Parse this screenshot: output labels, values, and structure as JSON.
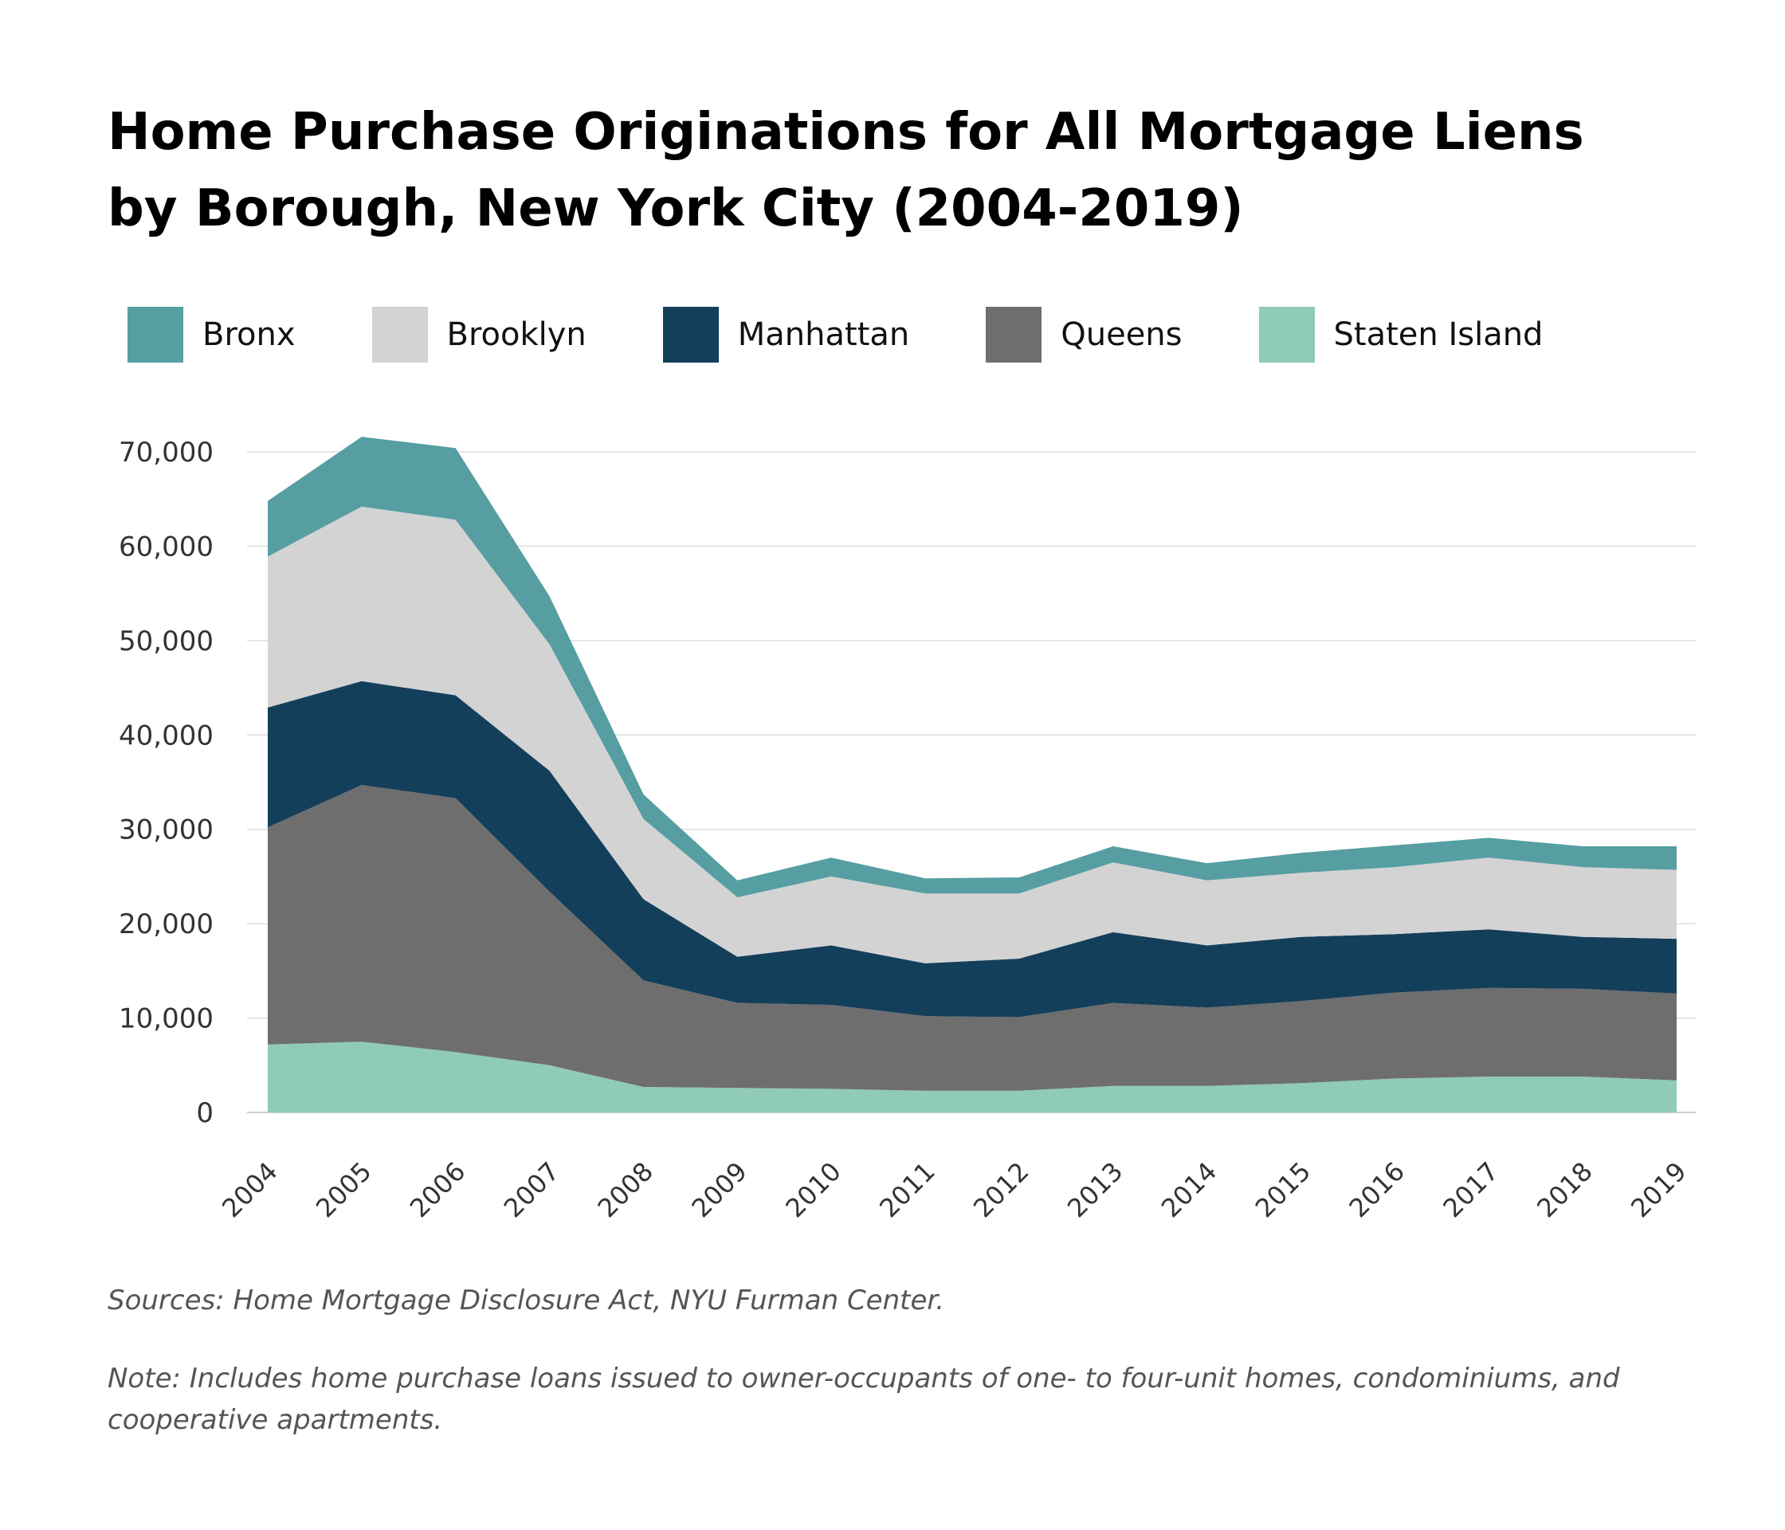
{
  "chart_data": {
    "type": "area",
    "stacked": true,
    "title": "Home Purchase Originations for All Mortgage Liens by Borough, New York City (2004-2019)",
    "x": [
      "2004",
      "2005",
      "2006",
      "2007",
      "2008",
      "2009",
      "2010",
      "2011",
      "2012",
      "2013",
      "2014",
      "2015",
      "2016",
      "2017",
      "2018",
      "2019"
    ],
    "series": [
      {
        "name": "Staten Island",
        "color": "#90cbb6",
        "values": [
          7200,
          7500,
          6400,
          5000,
          2700,
          2600,
          2500,
          2300,
          2300,
          2800,
          2800,
          3100,
          3600,
          3800,
          3800,
          3400
        ]
      },
      {
        "name": "Queens",
        "color": "#6e6e6e",
        "values": [
          23000,
          27200,
          26900,
          18400,
          11300,
          9000,
          8900,
          7900,
          7800,
          8800,
          8300,
          8700,
          9100,
          9400,
          9300,
          9200
        ]
      },
      {
        "name": "Manhattan",
        "color": "#143f5b",
        "values": [
          12700,
          11000,
          10900,
          12800,
          8600,
          4900,
          6300,
          5600,
          6200,
          7500,
          6600,
          6800,
          6200,
          6200,
          5500,
          5800
        ]
      },
      {
        "name": "Brooklyn",
        "color": "#d3d3d3",
        "values": [
          16000,
          18500,
          18600,
          13400,
          8500,
          6300,
          7300,
          7400,
          6900,
          7400,
          6900,
          6800,
          7100,
          7600,
          7400,
          7300
        ]
      },
      {
        "name": "Bronx",
        "color": "#569ea1",
        "values": [
          5900,
          7400,
          7600,
          5100,
          2600,
          1800,
          2000,
          1600,
          1700,
          1700,
          1800,
          2100,
          2300,
          2100,
          2200,
          2500
        ]
      }
    ],
    "legend_order": [
      "Bronx",
      "Brooklyn",
      "Manhattan",
      "Queens",
      "Staten Island"
    ],
    "y_ticks": [
      0,
      10000,
      20000,
      30000,
      40000,
      50000,
      60000,
      70000
    ],
    "y_tick_labels": [
      "0",
      "10,000",
      "20,000",
      "30,000",
      "40,000",
      "50,000",
      "60,000",
      "70,000"
    ],
    "ylim": [
      0,
      70000
    ],
    "grid": true,
    "legend_position": "top-left"
  },
  "footer": {
    "source": "Sources: Home Mortgage Disclosure Act, NYU Furman Center.",
    "note": "Note: Includes home purchase loans issued to owner-occupants of one- to four-unit homes, condominiums, and cooperative apartments."
  }
}
